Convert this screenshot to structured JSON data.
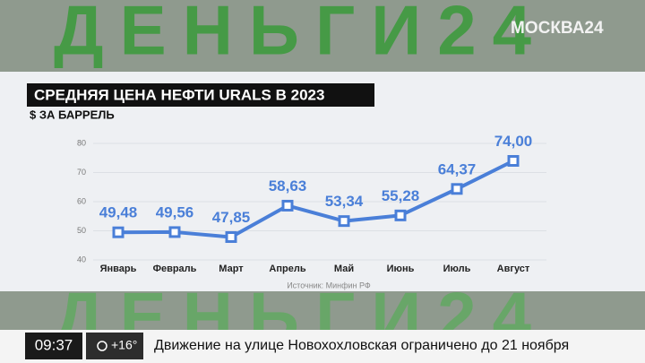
{
  "chart_data": {
    "type": "line",
    "title": "СРЕДНЯЯ ЦЕНА НЕФТИ URALS В 2023",
    "subtitle": "$ ЗА БАРРЕЛЬ",
    "categories": [
      "Январь",
      "Февраль",
      "Март",
      "Апрель",
      "Май",
      "Июнь",
      "Июль",
      "Август"
    ],
    "values": [
      49.48,
      49.56,
      47.85,
      58.63,
      53.34,
      55.28,
      64.37,
      74.0
    ],
    "value_labels": [
      "49,48",
      "49,56",
      "47,85",
      "58,63",
      "53,34",
      "55,28",
      "64,37",
      "74,00"
    ],
    "color": "#4a7fd8",
    "ylim": [
      40,
      80
    ],
    "yticks": [
      40,
      50,
      60,
      70,
      80
    ],
    "grid": true,
    "source": "Источник: Минфин РФ"
  },
  "overlay": {
    "background_text": "ДЕНЬГИ24",
    "channel": "МОСКВА24",
    "time": "09:37",
    "weather": "+16°",
    "headline": "Движение на улице Новохохловская ограничено до 21 ноября"
  }
}
